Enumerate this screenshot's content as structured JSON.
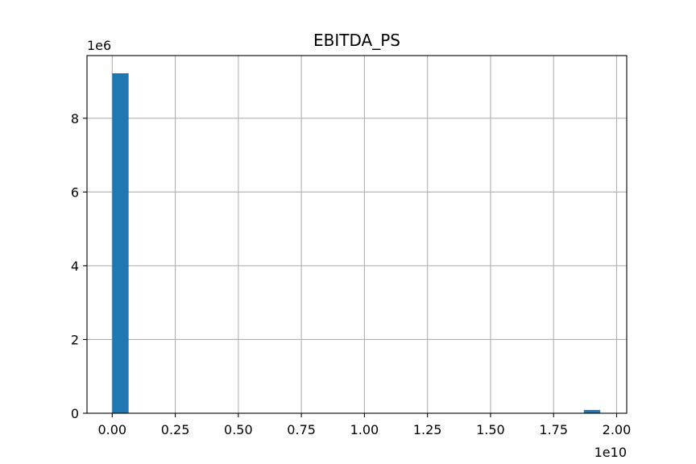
{
  "chart_data": {
    "type": "bar",
    "title": "EBITDA_PS",
    "xlabel": "",
    "ylabel": "",
    "x_offset_label": "1e10",
    "y_offset_label": "1e6",
    "xlim": [
      -0.1,
      2.04
    ],
    "ylim": [
      0,
      9.7
    ],
    "grid": true,
    "x_ticks": [
      0.0,
      0.25,
      0.5,
      0.75,
      1.0,
      1.25,
      1.5,
      1.75,
      2.0
    ],
    "x_tick_labels": [
      "0.00",
      "0.25",
      "0.50",
      "0.75",
      "1.00",
      "1.25",
      "1.50",
      "1.75",
      "2.00"
    ],
    "y_ticks": [
      0,
      2,
      4,
      6,
      8
    ],
    "y_tick_labels": [
      "0",
      "2",
      "4",
      "6",
      "8"
    ],
    "bars": [
      {
        "x0": 0.0,
        "x1": 0.065,
        "value": 9.22
      },
      {
        "x0": 1.87,
        "x1": 1.935,
        "value": 0.09
      }
    ],
    "bar_color": "#1f77b4"
  }
}
